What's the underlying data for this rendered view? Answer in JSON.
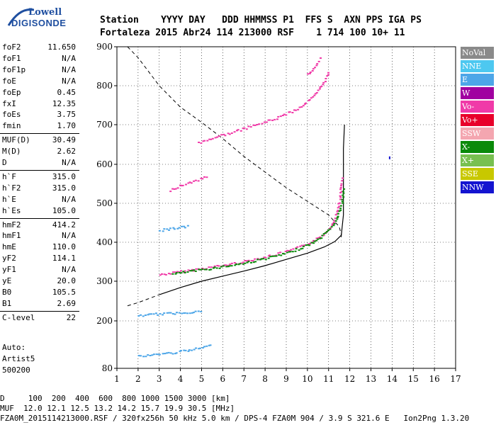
{
  "logo": {
    "line1": "Lowell",
    "line2": "DIGISONDE"
  },
  "header": {
    "labels": "Station    YYYY DAY   DDD HHMMSS P1  FFS S  AXN PPS IGA PS",
    "values": "Fortaleza 2015 Abr24 114 213000 RSF    1 714 100 10+ 11"
  },
  "params_1": [
    {
      "k": "foF2",
      "v": "11.650"
    },
    {
      "k": "foF1",
      "v": "N/A"
    },
    {
      "k": "foF1p",
      "v": "N/A"
    },
    {
      "k": "foE",
      "v": "N/A"
    },
    {
      "k": "foEp",
      "v": "0.45"
    },
    {
      "k": "fxI",
      "v": "12.35"
    },
    {
      "k": "foEs",
      "v": "3.75"
    },
    {
      "k": "fmin",
      "v": "1.70"
    }
  ],
  "params_2": [
    {
      "k": "MUF(D)",
      "v": "30.49"
    },
    {
      "k": "M(D)",
      "v": "2.62"
    },
    {
      "k": "D",
      "v": "N/A"
    }
  ],
  "params_3": [
    {
      "k": "h`F",
      "v": "315.0"
    },
    {
      "k": "h`F2",
      "v": "315.0"
    },
    {
      "k": "h`E",
      "v": "N/A"
    },
    {
      "k": "h`Es",
      "v": "105.0"
    }
  ],
  "params_4": [
    {
      "k": "hmF2",
      "v": "414.2"
    },
    {
      "k": "hmF1",
      "v": "N/A"
    },
    {
      "k": "hmE",
      "v": "110.0"
    },
    {
      "k": "yF2",
      "v": "114.1"
    },
    {
      "k": "yF1",
      "v": "N/A"
    },
    {
      "k": "yE",
      "v": "20.0"
    },
    {
      "k": "B0",
      "v": "105.5"
    },
    {
      "k": "B1",
      "v": "2.69"
    }
  ],
  "params_5": [
    {
      "k": "C-level",
      "v": "22"
    }
  ],
  "auto": {
    "l1": "Auto:",
    "l2": "Artist5",
    "l3": "500200"
  },
  "legend": [
    {
      "label": "NoVal",
      "color": "#8a8a8a"
    },
    {
      "label": "NNE",
      "color": "#4dc8f0"
    },
    {
      "label": "E",
      "color": "#4da6e8"
    },
    {
      "label": "W",
      "color": "#a000a0"
    },
    {
      "label": "Vo-",
      "color": "#f03aa8"
    },
    {
      "label": "Vo+",
      "color": "#e8002a"
    },
    {
      "label": "SSW",
      "color": "#f4a6b0"
    },
    {
      "label": "X-",
      "color": "#0a8a0a"
    },
    {
      "label": "X+",
      "color": "#78c050"
    },
    {
      "label": "SSE",
      "color": "#c8c800"
    },
    {
      "label": "NNW",
      "color": "#1414d0"
    }
  ],
  "footer": {
    "l1": "D     100  200  400  600  800 1000 1500 3000 [km]",
    "l2": "MUF  12.0 12.1 12.5 13.2 14.2 15.7 19.9 30.5 [MHz]",
    "l3": "FZA0M_2015114213000.RSF / 320fx256h 50 kHz 5.0 km / DPS-4 FZA0M 904 / 3.9 S 321.6 E   Ion2Png 1.3.20"
  },
  "chart_data": {
    "type": "scatter",
    "xlim": [
      1,
      17
    ],
    "ylim": [
      80,
      900
    ],
    "x_ticks": [
      1,
      2,
      3,
      4,
      5,
      6,
      7,
      8,
      9,
      10,
      11,
      12,
      13,
      14,
      15,
      16,
      17
    ],
    "y_ticks": [
      80,
      200,
      300,
      400,
      500,
      600,
      700,
      800,
      900
    ],
    "grid": true,
    "traces": [
      {
        "name": "F2 trace",
        "color": "#f03aa8",
        "points": [
          [
            3.0,
            318
          ],
          [
            3.5,
            322
          ],
          [
            4,
            326
          ],
          [
            4.5,
            330
          ],
          [
            5,
            334
          ],
          [
            5.5,
            338
          ],
          [
            6,
            342
          ],
          [
            6.5,
            347
          ],
          [
            7,
            352
          ],
          [
            7.5,
            358
          ],
          [
            8,
            364
          ],
          [
            8.5,
            370
          ],
          [
            9,
            378
          ],
          [
            9.5,
            387
          ],
          [
            10,
            398
          ],
          [
            10.5,
            412
          ],
          [
            10.8,
            425
          ],
          [
            11.1,
            445
          ],
          [
            11.3,
            470
          ],
          [
            11.5,
            510
          ],
          [
            11.6,
            570
          ]
        ]
      },
      {
        "name": "F2 X trace",
        "color": "#0a8a0a",
        "points": [
          [
            3.6,
            320
          ],
          [
            4.2,
            325
          ],
          [
            5,
            331
          ],
          [
            6,
            339
          ],
          [
            7,
            348
          ],
          [
            8,
            360
          ],
          [
            9,
            373
          ],
          [
            9.8,
            390
          ],
          [
            10.4,
            405
          ],
          [
            10.9,
            428
          ],
          [
            11.3,
            455
          ],
          [
            11.6,
            500
          ],
          [
            11.7,
            545
          ]
        ]
      },
      {
        "name": "2F multiple",
        "color": "#f03aa8",
        "points": [
          [
            4.8,
            655
          ],
          [
            5.5,
            668
          ],
          [
            6.5,
            683
          ],
          [
            7.5,
            700
          ],
          [
            8.5,
            718
          ],
          [
            9.5,
            742
          ],
          [
            10.3,
            775
          ],
          [
            10.7,
            805
          ],
          [
            11.0,
            840
          ]
        ]
      },
      {
        "name": "3F multiple",
        "color": "#f03aa8",
        "points": [
          [
            10.0,
            830
          ],
          [
            10.3,
            850
          ],
          [
            10.6,
            875
          ]
        ]
      },
      {
        "name": "Es 2nd",
        "color": "#4da6e8",
        "points": [
          [
            3.0,
            432
          ],
          [
            3.5,
            436
          ],
          [
            4,
            440
          ],
          [
            4.4,
            442
          ]
        ]
      },
      {
        "name": "Es",
        "color": "#4da6e8",
        "points": [
          [
            2.0,
            215
          ],
          [
            2.5,
            217
          ],
          [
            3,
            219
          ],
          [
            3.5,
            220
          ],
          [
            4,
            222
          ],
          [
            4.5,
            224
          ],
          [
            5,
            226
          ]
        ]
      },
      {
        "name": "E region",
        "color": "#4da6e8",
        "points": [
          [
            2.0,
            112
          ],
          [
            2.5,
            114
          ],
          [
            3,
            118
          ],
          [
            3.5,
            120
          ],
          [
            4,
            124
          ],
          [
            4.5,
            128
          ],
          [
            5,
            134
          ],
          [
            5.5,
            140
          ]
        ]
      },
      {
        "name": "F 2nd hop",
        "color": "#f03aa8",
        "points": [
          [
            3.5,
            535
          ],
          [
            4,
            548
          ],
          [
            4.5,
            556
          ],
          [
            5,
            565
          ],
          [
            5.3,
            572
          ]
        ]
      }
    ],
    "profile": [
      [
        1.5,
        238
      ],
      [
        2,
        246
      ],
      [
        3,
        266
      ],
      [
        4,
        284
      ],
      [
        5,
        300
      ],
      [
        6,
        313
      ],
      [
        7,
        326
      ],
      [
        8,
        340
      ],
      [
        9,
        356
      ],
      [
        10,
        372
      ],
      [
        10.8,
        388
      ],
      [
        11.3,
        402
      ],
      [
        11.6,
        418
      ],
      [
        11.7,
        470
      ],
      [
        11.7,
        560
      ],
      [
        11.7,
        640
      ],
      [
        11.75,
        700
      ]
    ],
    "muf_curve": [
      [
        1.5,
        900
      ],
      [
        2,
        872
      ],
      [
        3,
        800
      ],
      [
        4,
        745
      ],
      [
        5,
        706
      ],
      [
        6,
        665
      ],
      [
        7,
        620
      ],
      [
        8,
        580
      ],
      [
        9,
        540
      ],
      [
        10,
        505
      ],
      [
        11,
        470
      ],
      [
        11.5,
        440
      ],
      [
        11.6,
        420
      ],
      [
        11.6,
        405
      ]
    ]
  }
}
